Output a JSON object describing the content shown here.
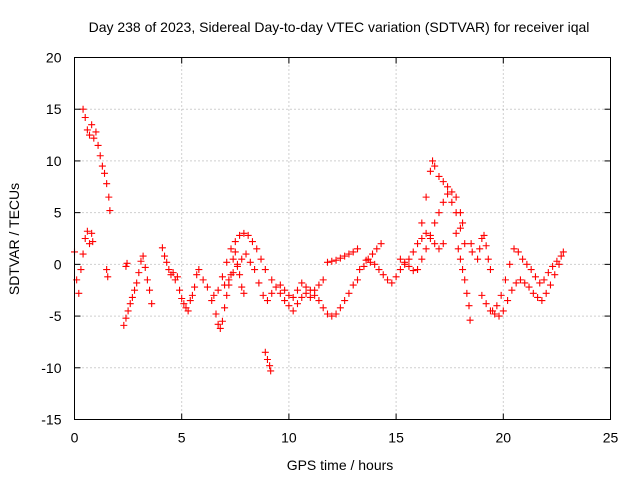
{
  "chart_data": {
    "type": "scatter",
    "title": "Day 238 of 2023, Sidereal Day-to-day VTEC variation (SDTVAR) for receiver iqal",
    "xlabel": "GPS time / hours",
    "ylabel": "SDTVAR / TECUs",
    "xlim": [
      0,
      25
    ],
    "ylim": [
      -15,
      20
    ],
    "xticks": [
      0,
      5,
      10,
      15,
      20,
      25
    ],
    "xtick_labels": [
      "0",
      "5",
      "10",
      "15",
      "20",
      "25"
    ],
    "yticks": [
      -15,
      -10,
      -5,
      0,
      5,
      10,
      15,
      20
    ],
    "ytick_labels": [
      "-15",
      "-10",
      "-5",
      "0",
      "5",
      "10",
      "15",
      "20"
    ],
    "grid": true,
    "marker": "+",
    "color": "#ff0000",
    "series": [
      {
        "name": "SDTVAR",
        "segments": [
          [
            [
              0.0,
              1.2
            ],
            [
              0.1,
              -1.5
            ],
            [
              0.2,
              -2.8
            ],
            [
              0.3,
              -0.5
            ],
            [
              0.4,
              1.0
            ],
            [
              0.5,
              2.5
            ],
            [
              0.6,
              3.2
            ],
            [
              0.7,
              2.0
            ],
            [
              0.8,
              3.0
            ],
            [
              0.85,
              2.2
            ]
          ],
          [
            [
              0.4,
              15.0
            ],
            [
              0.5,
              14.2
            ],
            [
              0.6,
              13.0
            ],
            [
              0.7,
              12.5
            ],
            [
              0.8,
              13.5
            ],
            [
              0.9,
              12.2
            ],
            [
              1.0,
              12.8
            ],
            [
              1.1,
              11.5
            ],
            [
              1.2,
              10.5
            ],
            [
              1.3,
              9.5
            ],
            [
              1.4,
              8.8
            ],
            [
              1.5,
              7.8
            ],
            [
              1.6,
              6.5
            ],
            [
              1.65,
              5.2
            ]
          ],
          [
            [
              1.5,
              -0.5
            ],
            [
              1.55,
              -1.2
            ]
          ],
          [
            [
              2.3,
              -5.9
            ],
            [
              2.4,
              -5.2
            ],
            [
              2.5,
              -4.5
            ],
            [
              2.6,
              -3.8
            ],
            [
              2.7,
              -3.2
            ],
            [
              2.8,
              -2.5
            ],
            [
              2.9,
              -1.8
            ],
            [
              3.0,
              -0.8
            ],
            [
              3.1,
              0.3
            ],
            [
              3.2,
              0.8
            ],
            [
              3.3,
              -0.3
            ],
            [
              3.4,
              -1.5
            ],
            [
              3.5,
              -2.5
            ],
            [
              3.6,
              -3.8
            ]
          ],
          [
            [
              2.4,
              -0.2
            ],
            [
              2.45,
              0.1
            ]
          ],
          [
            [
              4.1,
              1.6
            ],
            [
              4.2,
              0.8
            ],
            [
              4.3,
              0.2
            ],
            [
              4.4,
              -0.5
            ],
            [
              4.5,
              -1.0
            ],
            [
              4.6,
              -0.8
            ],
            [
              4.7,
              -1.5
            ],
            [
              4.8,
              -1.2
            ],
            [
              4.9,
              -2.5
            ],
            [
              5.0,
              -3.3
            ],
            [
              5.1,
              -3.8
            ],
            [
              5.2,
              -4.2
            ],
            [
              5.3,
              -4.5
            ],
            [
              5.4,
              -3.5
            ],
            [
              5.5,
              -3.0
            ],
            [
              5.6,
              -2.2
            ],
            [
              5.7,
              -1.0
            ],
            [
              5.8,
              -0.5
            ]
          ],
          [
            [
              6.0,
              -1.5
            ],
            [
              6.2,
              -2.2
            ],
            [
              6.4,
              -3.5
            ],
            [
              6.6,
              -4.8
            ],
            [
              6.7,
              -5.8
            ],
            [
              6.8,
              -6.2
            ],
            [
              6.9,
              -5.5
            ],
            [
              7.0,
              -4.2
            ],
            [
              7.1,
              -3.0
            ],
            [
              7.2,
              -2.0
            ],
            [
              7.3,
              -1.0
            ],
            [
              7.4,
              0.5
            ],
            [
              7.5,
              1.2
            ],
            [
              7.6,
              0.0
            ],
            [
              7.7,
              -1.0
            ],
            [
              7.8,
              -2.2
            ],
            [
              7.9,
              -2.8
            ]
          ],
          [
            [
              6.5,
              -3.0
            ],
            [
              6.7,
              -2.5
            ],
            [
              6.9,
              -1.2
            ],
            [
              7.1,
              0.2
            ],
            [
              7.3,
              1.5
            ],
            [
              7.5,
              2.2
            ],
            [
              7.7,
              2.8
            ],
            [
              7.9,
              3.0
            ],
            [
              8.1,
              2.8
            ],
            [
              8.3,
              2.2
            ],
            [
              8.5,
              1.5
            ],
            [
              8.7,
              0.5
            ],
            [
              8.9,
              -0.5
            ]
          ],
          [
            [
              7.0,
              -2.0
            ],
            [
              7.2,
              -1.5
            ],
            [
              7.4,
              -0.8
            ],
            [
              7.6,
              -0.2
            ],
            [
              7.8,
              0.5
            ],
            [
              8.0,
              1.0
            ],
            [
              8.2,
              0.2
            ],
            [
              8.4,
              -0.5
            ],
            [
              8.6,
              -1.8
            ],
            [
              8.8,
              -3.0
            ],
            [
              9.0,
              -3.5
            ],
            [
              9.2,
              -2.8
            ]
          ],
          [
            [
              8.9,
              -8.5
            ],
            [
              9.0,
              -9.2
            ],
            [
              9.1,
              -9.8
            ],
            [
              9.15,
              -10.3
            ]
          ],
          [
            [
              9.2,
              -1.5
            ],
            [
              9.4,
              -2.2
            ],
            [
              9.6,
              -2.8
            ],
            [
              9.8,
              -3.5
            ],
            [
              10.0,
              -4.0
            ],
            [
              10.2,
              -4.5
            ],
            [
              10.4,
              -3.8
            ],
            [
              10.6,
              -3.2
            ],
            [
              10.8,
              -2.8
            ],
            [
              11.0,
              -3.2
            ],
            [
              11.2,
              -2.5
            ],
            [
              11.4,
              -2.0
            ],
            [
              11.6,
              -1.5
            ]
          ],
          [
            [
              9.6,
              -2.0
            ],
            [
              9.8,
              -2.5
            ],
            [
              10.0,
              -3.0
            ],
            [
              10.2,
              -3.2
            ],
            [
              10.4,
              -2.5
            ],
            [
              10.6,
              -1.8
            ],
            [
              10.8,
              -2.2
            ],
            [
              11.0,
              -2.5
            ],
            [
              11.2,
              -3.0
            ],
            [
              11.4,
              -3.5
            ],
            [
              11.6,
              -4.2
            ],
            [
              11.8,
              -4.8
            ],
            [
              12.0,
              -5.0
            ],
            [
              12.2,
              -4.8
            ],
            [
              12.4,
              -4.2
            ],
            [
              12.6,
              -3.5
            ],
            [
              12.8,
              -2.8
            ],
            [
              13.0,
              -2.0
            ],
            [
              13.2,
              -1.5
            ]
          ],
          [
            [
              11.8,
              0.2
            ],
            [
              12.0,
              0.3
            ],
            [
              12.2,
              0.4
            ],
            [
              12.4,
              0.6
            ],
            [
              12.6,
              0.8
            ],
            [
              12.8,
              1.0
            ],
            [
              13.0,
              1.2
            ],
            [
              13.2,
              1.5
            ]
          ],
          [
            [
              13.3,
              -0.5
            ],
            [
              13.5,
              -0.2
            ],
            [
              13.7,
              0.5
            ],
            [
              13.9,
              1.0
            ],
            [
              14.1,
              1.5
            ],
            [
              14.3,
              2.0
            ]
          ],
          [
            [
              13.6,
              0.4
            ],
            [
              13.8,
              0.2
            ],
            [
              14.0,
              0.0
            ],
            [
              14.2,
              -0.5
            ],
            [
              14.4,
              -1.0
            ],
            [
              14.6,
              -1.5
            ],
            [
              14.8,
              -1.8
            ],
            [
              15.0,
              -1.2
            ],
            [
              15.2,
              -0.5
            ],
            [
              15.4,
              0.0
            ],
            [
              15.6,
              0.5
            ],
            [
              15.8,
              1.2
            ],
            [
              16.0,
              2.0
            ],
            [
              16.2,
              2.5
            ],
            [
              16.4,
              3.0
            ],
            [
              16.6,
              2.5
            ],
            [
              16.8,
              2.0
            ],
            [
              17.0,
              1.5
            ],
            [
              17.2,
              2.0
            ]
          ],
          [
            [
              15.2,
              0.5
            ],
            [
              15.4,
              0.2
            ],
            [
              15.6,
              -0.2
            ],
            [
              15.8,
              -0.6
            ],
            [
              16.0,
              -0.5
            ],
            [
              16.2,
              0.5
            ],
            [
              16.4,
              1.5
            ],
            [
              16.6,
              2.8
            ],
            [
              16.8,
              4.0
            ],
            [
              17.0,
              5.0
            ],
            [
              17.2,
              6.0
            ],
            [
              17.4,
              6.8
            ],
            [
              17.6,
              6.0
            ],
            [
              17.8,
              5.0
            ],
            [
              18.0,
              3.5
            ],
            [
              18.2,
              2.0
            ]
          ],
          [
            [
              16.2,
              4.0
            ],
            [
              16.4,
              6.5
            ],
            [
              16.6,
              9.0
            ],
            [
              16.7,
              10.0
            ],
            [
              16.8,
              9.5
            ],
            [
              17.0,
              8.5
            ],
            [
              17.2,
              8.0
            ],
            [
              17.4,
              7.5
            ],
            [
              17.6,
              7.0
            ],
            [
              17.8,
              6.5
            ],
            [
              18.0,
              5.0
            ],
            [
              18.1,
              4.0
            ]
          ],
          [
            [
              17.8,
              3.0
            ],
            [
              17.9,
              1.5
            ],
            [
              18.0,
              0.5
            ],
            [
              18.1,
              -0.5
            ],
            [
              18.2,
              -1.5
            ],
            [
              18.3,
              -2.8
            ],
            [
              18.4,
              -4.0
            ],
            [
              18.45,
              -5.4
            ]
          ],
          [
            [
              18.5,
              2.0
            ],
            [
              18.55,
              1.2
            ]
          ],
          [
            [
              18.8,
              0.5
            ],
            [
              18.9,
              1.5
            ],
            [
              19.0,
              2.5
            ],
            [
              19.1,
              2.8
            ],
            [
              19.2,
              1.8
            ],
            [
              19.3,
              0.5
            ],
            [
              19.4,
              -0.5
            ]
          ],
          [
            [
              19.0,
              -3.0
            ],
            [
              19.2,
              -3.8
            ],
            [
              19.4,
              -4.5
            ],
            [
              19.6,
              -4.8
            ],
            [
              19.8,
              -5.0
            ],
            [
              20.0,
              -4.5
            ],
            [
              20.2,
              -3.5
            ],
            [
              20.4,
              -2.5
            ],
            [
              20.6,
              -1.8
            ],
            [
              20.8,
              -1.5
            ],
            [
              21.0,
              -1.8
            ],
            [
              21.2,
              -2.2
            ],
            [
              21.4,
              -2.8
            ],
            [
              21.6,
              -3.2
            ],
            [
              21.8,
              -3.5
            ],
            [
              22.0,
              -2.8
            ],
            [
              22.2,
              -2.0
            ],
            [
              22.4,
              -1.0
            ],
            [
              22.6,
              0.0
            ],
            [
              22.8,
              1.2
            ]
          ],
          [
            [
              19.5,
              -4.5
            ],
            [
              19.7,
              -4.0
            ],
            [
              19.9,
              -3.0
            ],
            [
              20.1,
              -1.5
            ],
            [
              20.3,
              0.0
            ],
            [
              20.5,
              1.5
            ],
            [
              20.7,
              1.2
            ],
            [
              20.9,
              0.5
            ],
            [
              21.1,
              0.0
            ],
            [
              21.3,
              -0.5
            ],
            [
              21.5,
              -1.2
            ],
            [
              21.7,
              -1.8
            ],
            [
              21.9,
              -1.5
            ],
            [
              22.1,
              -0.8
            ],
            [
              22.3,
              -0.2
            ],
            [
              22.5,
              0.3
            ],
            [
              22.7,
              0.8
            ]
          ]
        ]
      }
    ]
  }
}
